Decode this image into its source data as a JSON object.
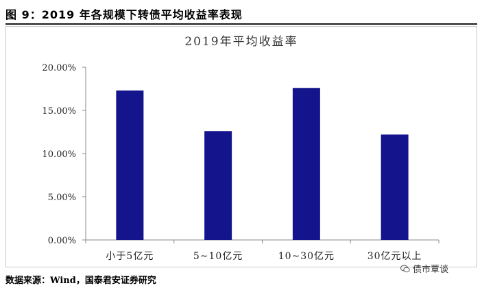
{
  "figure": {
    "title": "图 9：2019 年各规模下转债平均收益率表现"
  },
  "source": "数据来源：Wind，国泰君安证券研究",
  "watermark": {
    "text": "债市覃谈",
    "icon": "wechat-icon"
  },
  "colors": {
    "bar": "#14148c",
    "axis": "#888888",
    "text": "#000000"
  },
  "chart_data": {
    "type": "bar",
    "title": "2019年平均收益率",
    "categories": [
      "小于5亿元",
      "5~10亿元",
      "10~30亿元",
      "30亿元以上"
    ],
    "values": [
      17.3,
      12.6,
      17.6,
      12.2
    ],
    "ylim": [
      0,
      20
    ],
    "yticks": [
      "0.00%",
      "5.00%",
      "10.00%",
      "15.00%",
      "20.00%"
    ],
    "ytick_values": [
      0,
      5,
      10,
      15,
      20
    ],
    "grid": false,
    "legend": "none"
  }
}
